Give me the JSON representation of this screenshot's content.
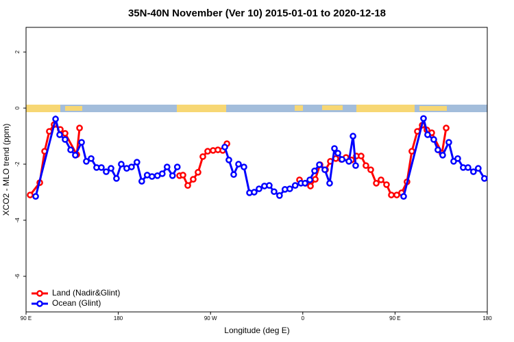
{
  "chart_data": {
    "type": "line",
    "title": "35N-40N November (Ver 10)   2015-01-01 to 2020-12-18",
    "xlabel": "Longitude (deg E)",
    "ylabel": "XCO2 - MLO trend (ppm)",
    "xlim": [
      90,
      540
    ],
    "ylim": [
      -7.27,
      2.88
    ],
    "xticks": [
      {
        "value": 90,
        "label": "90 E"
      },
      180,
      {
        "value": 270,
        "label": "90 W"
      },
      {
        "value": 360,
        "label": "0"
      },
      {
        "value": 450,
        "label": "90 E"
      },
      {
        "value": 540,
        "label": "180"
      }
    ],
    "yticks": [
      -6,
      -4,
      -2,
      0,
      2
    ],
    "legend": "bottom-left",
    "series": [
      {
        "name": "Land (Nadir&Glint)",
        "color": "#ff0000",
        "x": [
          94.0,
          103.4,
          108.1,
          112.7,
          117.4,
          123.4,
          128.1,
          139.5,
          142.2,
          null,
          239.8,
          243.1,
          247.8,
          253.1,
          257.8,
          262.5,
          267.2,
          272.5,
          277.2,
          281.9,
          286.0,
          null,
          356.8,
          362.8,
          367.5,
          372.2,
          376.8,
          382.2,
          386.9,
          392.2,
          397.6,
          402.2,
          407.6,
          412.3,
          416.9,
          421.6,
          426.3,
          431.7,
          436.3,
          441.7,
          446.4,
          451.7,
          456.4,
          461.7,
          466.4,
          471.8,
          476.5,
          481.1,
          485.8,
          495.8,
          499.9
        ],
        "values": [
          -3.1,
          -2.66,
          -1.54,
          -0.83,
          -0.59,
          -0.76,
          -0.9,
          -1.66,
          -0.71,
          null,
          -2.41,
          -2.39,
          -2.76,
          -2.54,
          -2.29,
          -1.73,
          -1.54,
          -1.51,
          -1.49,
          -1.51,
          -1.27,
          null,
          -2.56,
          -2.68,
          -2.78,
          -2.54,
          -2.02,
          -2.2,
          -1.9,
          -1.8,
          -1.83,
          -1.76,
          -1.85,
          -1.71,
          -1.71,
          -2.05,
          -2.2,
          -2.68,
          -2.56,
          -2.73,
          -3.1,
          -3.1,
          -3.02,
          -2.63,
          -1.54,
          -0.83,
          -0.61,
          -0.78,
          -0.88,
          -1.61,
          -0.71
        ]
      },
      {
        "name": "Ocean (Glint)",
        "color": "#0000ff",
        "x": [
          99.4,
          118.8,
          122.8,
          128.1,
          133.5,
          138.1,
          144.2,
          148.8,
          153.5,
          158.8,
          163.5,
          168.2,
          172.9,
          178.2,
          182.9,
          188.2,
          192.9,
          198.2,
          202.9,
          208.2,
          212.9,
          218.2,
          222.9,
          227.6,
          232.9,
          237.6,
          null,
          283.9,
          287.9,
          292.6,
          297.3,
          302.6,
          308.0,
          312.6,
          317.3,
          322.6,
          327.3,
          332.0,
          337.3,
          342.6,
          347.3,
          352.6,
          358.2,
          362.2,
          366.9,
          371.5,
          376.2,
          381.5,
          386.2,
          390.9,
          394.3,
          398.3,
          405.0,
          409.0,
          411.6,
          null,
          458.4,
          477.8,
          481.8,
          487.8,
          491.8,
          496.5,
          502.5,
          507.2,
          511.2,
          516.5,
          521.2,
          526.5,
          531.2,
          537.2
        ],
        "values": [
          -3.15,
          -0.39,
          -0.95,
          -1.12,
          -1.49,
          -1.68,
          -1.22,
          -1.9,
          -1.8,
          -2.12,
          -2.12,
          -2.27,
          -2.15,
          -2.51,
          -2.0,
          -2.15,
          -2.1,
          -1.93,
          -2.61,
          -2.39,
          -2.44,
          -2.41,
          -2.34,
          -2.1,
          -2.41,
          -2.1,
          null,
          -1.39,
          -1.85,
          -2.37,
          -2.0,
          -2.1,
          -3.02,
          -3.0,
          -2.88,
          -2.78,
          -2.76,
          -2.98,
          -3.12,
          -2.9,
          -2.88,
          -2.76,
          -2.68,
          -2.68,
          -2.56,
          -2.24,
          -2.02,
          -2.2,
          -2.68,
          -1.44,
          -1.61,
          -1.83,
          -1.9,
          -1.0,
          -2.05,
          null,
          -3.15,
          -0.37,
          -0.95,
          -1.12,
          -1.49,
          -1.68,
          -1.22,
          -1.9,
          -1.8,
          -2.12,
          -2.12,
          -2.27,
          -2.15,
          -2.51
        ]
      }
    ]
  }
}
